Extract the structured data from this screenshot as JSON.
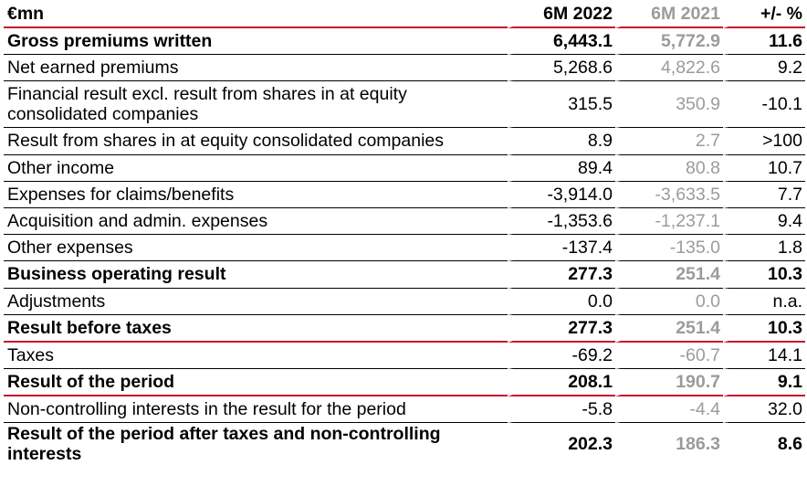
{
  "table": {
    "headers": {
      "label": "€mn",
      "current": "6M 2022",
      "previous": "6M 2021",
      "change": "+/- %"
    },
    "rows": [
      {
        "label": "Gross premiums written",
        "current": "6,443.1",
        "previous": "5,772.9",
        "change": "11.6",
        "bold": true
      },
      {
        "label": "Net earned premiums",
        "current": "5,268.6",
        "previous": "4,822.6",
        "change": "9.2",
        "bold": false
      },
      {
        "label": "Financial result excl. result from shares in at equity consolidated companies",
        "current": "315.5",
        "previous": "350.9",
        "change": "-10.1",
        "bold": false
      },
      {
        "label": "Result from shares in at equity consolidated companies",
        "current": "8.9",
        "previous": "2.7",
        "change": ">100",
        "bold": false
      },
      {
        "label": "Other income",
        "current": "89.4",
        "previous": "80.8",
        "change": "10.7",
        "bold": false
      },
      {
        "label": "Expenses for claims/benefits",
        "current": "-3,914.0",
        "previous": "-3,633.5",
        "change": "7.7",
        "bold": false
      },
      {
        "label": "Acquisition and admin. expenses",
        "current": "-1,353.6",
        "previous": "-1,237.1",
        "change": "9.4",
        "bold": false
      },
      {
        "label": "Other expenses",
        "current": "-137.4",
        "previous": "-135.0",
        "change": "1.8",
        "bold": false
      },
      {
        "label": "Business operating result",
        "current": "277.3",
        "previous": "251.4",
        "change": "10.3",
        "bold": true
      },
      {
        "label": "Adjustments",
        "current": "0.0",
        "previous": "0.0",
        "change": "n.a.",
        "bold": false
      },
      {
        "label": "Result before taxes",
        "current": "277.3",
        "previous": "251.4",
        "change": "10.3",
        "bold": true
      },
      {
        "label": "Taxes",
        "current": "-69.2",
        "previous": "-60.7",
        "change": "14.1",
        "bold": false
      },
      {
        "label": "Result of the period",
        "current": "208.1",
        "previous": "190.7",
        "change": "9.1",
        "bold": true
      },
      {
        "label": "Non-controlling interests in the result for the period",
        "current": "-5.8",
        "previous": "-4.4",
        "change": "32.0",
        "bold": false
      },
      {
        "label": "Result of the period after taxes and non-controlling interests",
        "current": "202.3",
        "previous": "186.3",
        "change": "8.6",
        "bold": true
      }
    ]
  },
  "colors": {
    "accent_red": "#c8102e",
    "prior_year_grey": "#9b9b9b",
    "text": "#000000"
  }
}
